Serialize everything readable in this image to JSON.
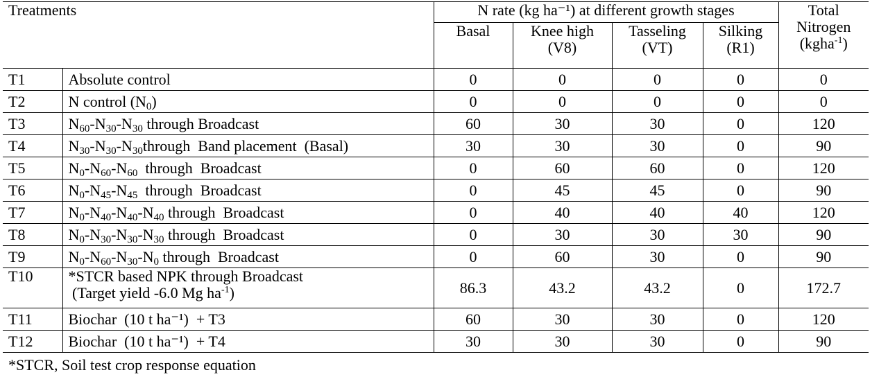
{
  "header": {
    "treatments": "Treatments",
    "n_rate": "N rate  (kg ha⁻¹) at different growth stages",
    "basal": "Basal",
    "knee_high_1": "Knee high",
    "knee_high_2": "(V8)",
    "tasseling_1": "Tasseling",
    "tasseling_2": "(VT)",
    "silking_1": "Silking",
    "silking_2": "(R1)",
    "total_1": "Total",
    "total_2": "Nitrogen",
    "total_3": "(kgha",
    "total_3_sup": "-1",
    "total_3_end": ")"
  },
  "rows": [
    {
      "id": "T1",
      "values": [
        "0",
        "0",
        "0",
        "0",
        "0"
      ]
    },
    {
      "id": "T2",
      "values": [
        "0",
        "0",
        "0",
        "0",
        "0"
      ]
    },
    {
      "id": "T3",
      "values": [
        "60",
        "30",
        "30",
        "0",
        "120"
      ]
    },
    {
      "id": "T4",
      "values": [
        "30",
        "30",
        "30",
        "0",
        "90"
      ]
    },
    {
      "id": "T5",
      "values": [
        "0",
        "60",
        "60",
        "0",
        "120"
      ]
    },
    {
      "id": "T6",
      "values": [
        "0",
        "45",
        "45",
        "0",
        "90"
      ]
    },
    {
      "id": "T7",
      "values": [
        "0",
        "40",
        "40",
        "40",
        "120"
      ]
    },
    {
      "id": "T8",
      "values": [
        "0",
        "30",
        "30",
        "30",
        "90"
      ]
    },
    {
      "id": "T9",
      "values": [
        "0",
        "60",
        "30",
        "0",
        "90"
      ]
    },
    {
      "id": "T10",
      "values": [
        "86.3",
        "43.2",
        "43.2",
        "0",
        "172.7"
      ]
    },
    {
      "id": "T11",
      "values": [
        "60",
        "30",
        "30",
        "0",
        "120"
      ]
    },
    {
      "id": "T12",
      "values": [
        "30",
        "30",
        "30",
        "0",
        "90"
      ]
    }
  ],
  "desc": {
    "t1": "Absolute control",
    "t2_a": "N control (N",
    "t2_sub": "0",
    "t2_b": ")",
    "t3": [
      "N",
      "60",
      "-N",
      "30",
      "-N",
      "30",
      " through Broadcast"
    ],
    "t4": [
      "N",
      "30",
      "-N",
      "30",
      "-N",
      "30",
      "through  Band placement  (Basal)"
    ],
    "t5": [
      "N",
      "0",
      "-N",
      "60",
      "-N",
      "60",
      "  through  Broadcast"
    ],
    "t6": [
      "N",
      "0",
      "-N",
      "45",
      "-N",
      "45",
      "  through  Broadcast"
    ],
    "t7": [
      "N",
      "0",
      "-N",
      "40",
      "-N",
      "40",
      "-N",
      "40",
      " through  Broadcast"
    ],
    "t8": [
      "N",
      "0",
      "-N",
      "30",
      "-N",
      "30",
      "-N",
      "30",
      " through  Broadcast"
    ],
    "t9": [
      "N",
      "0",
      "-N",
      "60",
      "-N",
      "30",
      "-N",
      "0",
      " through  Broadcast"
    ],
    "t10_line1": "*STCR based NPK through Broadcast",
    "t10_line2": " (Target yield -6.0 Mg ha",
    "t10_sup": "-1",
    "t10_end": ")",
    "t11": "Biochar  (10 t ha⁻¹)  + T3",
    "t12": "Biochar  (10 t ha⁻¹)  + T4"
  },
  "footnote": "*STCR, Soil test crop response equation"
}
